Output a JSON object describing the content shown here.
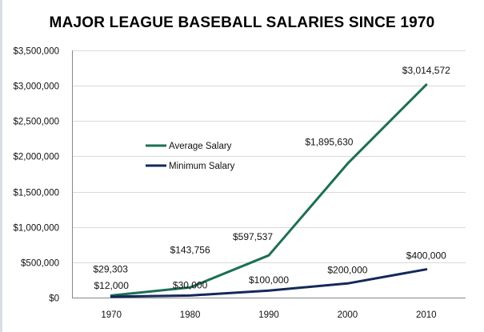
{
  "chart_data": {
    "type": "line",
    "title": "MAJOR LEAGUE BASEBALL SALARIES SINCE 1970",
    "xlabel": "",
    "ylabel": "",
    "categories": [
      "1970",
      "1980",
      "1990",
      "2000",
      "2010"
    ],
    "ylim": [
      0,
      3500000
    ],
    "yticks": [
      0,
      500000,
      1000000,
      1500000,
      2000000,
      2500000,
      3000000,
      3500000
    ],
    "ytick_labels": [
      "$0",
      "$500,000",
      "$1,000,000",
      "$1,500,000",
      "$2,000,000",
      "$2,500,000",
      "$3,000,000",
      "$3,500,000"
    ],
    "grid": true,
    "legend_position": "upper-left-inside",
    "series": [
      {
        "name": "Average Salary",
        "color": "#1d6e55",
        "values": [
          29303,
          143756,
          597537,
          1895630,
          3014572
        ],
        "labels": [
          "$29,303",
          "$143,756",
          "$597,537",
          "$1,895,630",
          "$3,014,572"
        ]
      },
      {
        "name": "Minimum Salary",
        "color": "#14285a",
        "values": [
          12000,
          30000,
          100000,
          200000,
          400000
        ],
        "labels": [
          "$12,000",
          "$30,000",
          "$100,000",
          "$200,000",
          "$400,000"
        ]
      }
    ]
  }
}
